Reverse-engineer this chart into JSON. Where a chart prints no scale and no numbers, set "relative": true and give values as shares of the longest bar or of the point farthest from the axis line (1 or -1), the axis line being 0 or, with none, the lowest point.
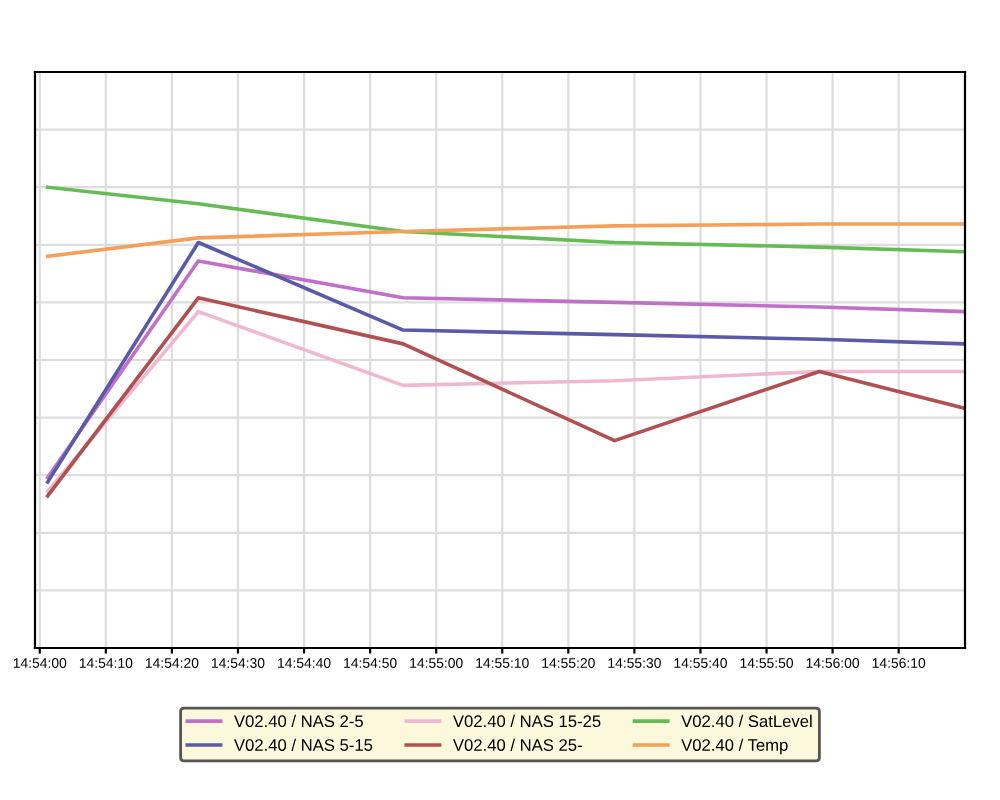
{
  "chart_data": {
    "type": "line",
    "relative": true,
    "grid": true,
    "legend": "bottom",
    "marker": "none",
    "line_style": "solid",
    "x": [
      14.900333,
      14.906667,
      14.915278,
      14.924167,
      14.932778,
      14.938889
    ],
    "xlim": [
      14.8998,
      14.9389
    ],
    "xticks": [
      {
        "value": 14.9,
        "label": "14:54:00"
      },
      {
        "value": 14.902778,
        "label": "14:54:10"
      },
      {
        "value": 14.905556,
        "label": "14:54:20"
      },
      {
        "value": 14.908333,
        "label": "14:54:30"
      },
      {
        "value": 14.911111,
        "label": "14:54:40"
      },
      {
        "value": 14.913889,
        "label": "14:54:50"
      },
      {
        "value": 14.916667,
        "label": "14:55:00"
      },
      {
        "value": 14.919444,
        "label": "14:55:10"
      },
      {
        "value": 14.922222,
        "label": "14:55:20"
      },
      {
        "value": 14.925,
        "label": "14:55:30"
      },
      {
        "value": 14.927778,
        "label": "14:55:40"
      },
      {
        "value": 14.930556,
        "label": "14:55:50"
      },
      {
        "value": 14.933333,
        "label": "14:56:00"
      },
      {
        "value": 14.936111,
        "label": "14:56:10"
      }
    ],
    "series": [
      {
        "name": "V02.40 / NAS 2-5",
        "color": "#c070c8",
        "values": [
          0.37,
          0.84,
          0.76,
          0.75,
          0.74,
          0.73
        ]
      },
      {
        "name": "V02.40 / NAS 5-15",
        "color": "#5a5aa8",
        "values": [
          0.36,
          0.88,
          0.69,
          0.68,
          0.67,
          0.66
        ]
      },
      {
        "name": "V02.40 / NAS 15-25",
        "color": "#f0b8d0",
        "values": [
          0.34,
          0.73,
          0.57,
          0.58,
          0.6,
          0.6
        ]
      },
      {
        "name": "V02.40 / NAS 25-",
        "color": "#b05050",
        "values": [
          0.33,
          0.76,
          0.66,
          0.45,
          0.6,
          0.52
        ]
      },
      {
        "name": "V02.40 / SatLevel",
        "color": "#66bb55",
        "values": [
          1.0,
          0.964,
          0.904,
          0.88,
          0.87,
          0.86
        ]
      },
      {
        "name": "V02.40 / Temp",
        "color": "#f5a05a",
        "values": [
          0.85,
          0.89,
          0.904,
          0.916,
          0.92,
          0.92
        ]
      }
    ]
  }
}
